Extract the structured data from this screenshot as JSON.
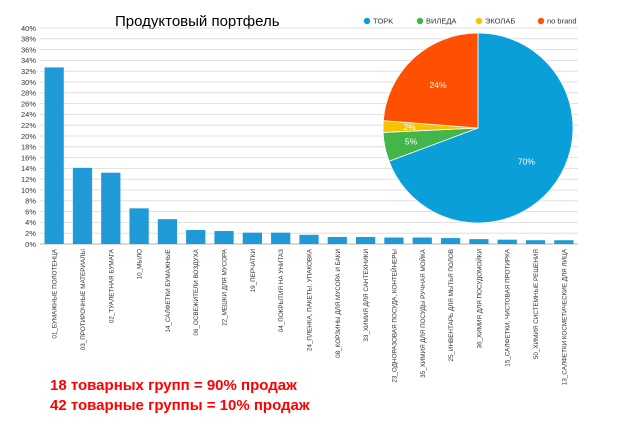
{
  "chart_data": [
    {
      "type": "bar",
      "title": "Продуктовый портфель",
      "xlabel": "",
      "ylabel": "",
      "ylim": [
        0,
        40
      ],
      "yticks": [
        "0%",
        "2%",
        "4%",
        "6%",
        "8%",
        "10%",
        "12%",
        "14%",
        "16%",
        "18%",
        "20%",
        "22%",
        "24%",
        "26%",
        "28%",
        "30%",
        "32%",
        "34%",
        "36%",
        "38%",
        "40%"
      ],
      "grid": true,
      "color": "#1f9ad6",
      "categories": [
        "01_БУМАЖНЫЕ ПОЛОТЕНЦА",
        "03_ПРОТИРОЧНЫЕ МАТЕРИАЛЫ",
        "02_ТУАЛЕТНАЯ БУМАГА",
        "10_МЫЛО",
        "14_САЛФЕТКИ БУМАЖНЫЕ",
        "06_ОСВЕЖИТЕЛИ ВОЗДУХА",
        "22_МЕШКИ ДЛЯ МУСОРА",
        "19_ПЕРЧАТКИ",
        "04_ПОКРЫТИЯ НА УНИТАЗ",
        "24_ПЛЕНКА, ПАКЕТЫ, УПАКОВКА",
        "08_КОРЗИНЫ ДЛЯ МУСОРА И БАКИ",
        "33_ХИМИЯ ДЛЯ САНТЕХНИКИ",
        "23_ОДНОРАЗОВАЯ ПОСУДА, КОНТЕЙНЕРЫ",
        "35_ХИМИЯ ДЛЯ ПОСУДЫ РУЧНАЯ МОЙКА",
        "25_ИНВЕНТАРЬ ДЛЯ МЫТЬЯ ПОЛОВ",
        "36_ХИМИЯ ДЛЯ ПОСУДОМОЙКИ",
        "15_САЛФЕТКИ, ЧИСТОВАЯ ПРОТИРКА",
        "50_ХИМИЯ СИСТЕМНЫЕ РЕШЕНИЯ",
        "13_САЛФЕТКИ КОСМЕТИЧЕСКИЕ ДЛЯ ЛИЦА"
      ],
      "values": [
        32.7,
        14.1,
        13.2,
        6.6,
        4.6,
        2.6,
        2.4,
        2.1,
        2.1,
        1.7,
        1.3,
        1.3,
        1.2,
        1.2,
        1.1,
        0.9,
        0.8,
        0.7,
        0.7
      ]
    },
    {
      "type": "pie",
      "legend_position": "top",
      "labels": [
        "TOPK",
        "ВИЛЕДА",
        "ЭКОЛАБ",
        "no brand"
      ],
      "values": [
        70,
        5,
        2,
        24
      ],
      "value_labels": [
        "70%",
        "5%",
        "2%",
        "24%"
      ],
      "colors": [
        "#0a9fd8",
        "#42b649",
        "#f5c400",
        "#ff4f00"
      ]
    }
  ],
  "footer": {
    "line1": "18 товарных групп = 90% продаж",
    "line2": "42 товарные группы = 10% продаж"
  }
}
